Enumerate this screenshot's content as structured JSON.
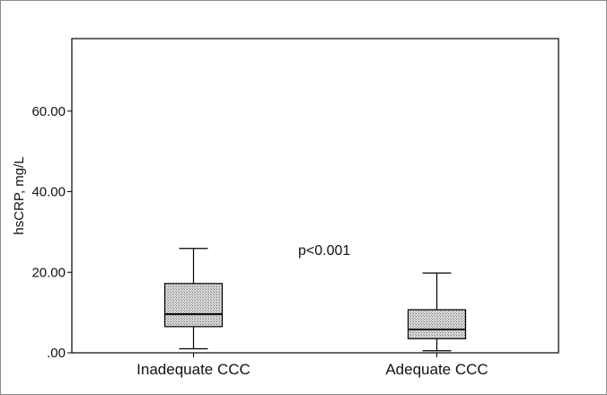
{
  "chart_data": {
    "type": "box",
    "ylabel": "hsCRP, mg/L",
    "ylim": [
      0,
      78
    ],
    "yticks": [
      {
        "value": 0,
        "label": ".00"
      },
      {
        "value": 20,
        "label": "20.00"
      },
      {
        "value": 40,
        "label": "40.00"
      },
      {
        "value": 60,
        "label": "60.00"
      }
    ],
    "categories": [
      "Inadequate CCC",
      "Adequate CCC"
    ],
    "boxes": [
      {
        "category": "Inadequate CCC",
        "whisker_low": 1.0,
        "q1": 6.5,
        "median": 9.6,
        "q3": 17.2,
        "whisker_high": 25.9
      },
      {
        "category": "Adequate CCC",
        "whisker_low": 0.5,
        "q1": 3.5,
        "median": 5.8,
        "q3": 10.7,
        "whisker_high": 19.8
      }
    ],
    "annotation": "p<0.001",
    "box_fill": "#bdbdbd"
  }
}
